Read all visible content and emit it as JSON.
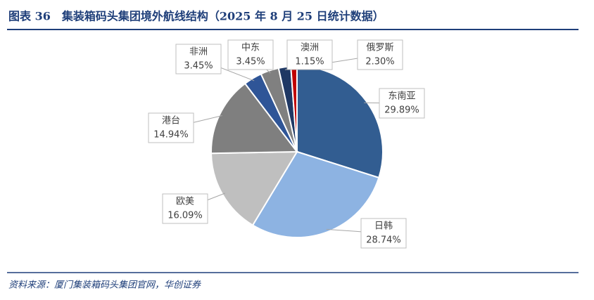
{
  "chart_data": {
    "type": "pie",
    "title": "图表 36　集装箱码头集团境外航线结构（2025 年 8 月 25 日统计数据）",
    "source": "资料来源：厦门集装箱码头集团官网，华创证券",
    "categories": [
      "东南亚",
      "日韩",
      "欧美",
      "港台",
      "非洲",
      "中东",
      "俄罗斯",
      "澳洲"
    ],
    "values": [
      29.89,
      28.74,
      16.09,
      14.94,
      3.45,
      3.45,
      2.3,
      1.15
    ],
    "value_labels": [
      "29.89%",
      "28.74%",
      "16.09%",
      "14.94%",
      "3.45%",
      "3.45%",
      "2.30%",
      "1.15%"
    ],
    "colors": [
      "#325d91",
      "#8db3e2",
      "#bfbfbf",
      "#7f7f7f",
      "#2f5597",
      "#808080",
      "#1f3864",
      "#c00000"
    ]
  }
}
